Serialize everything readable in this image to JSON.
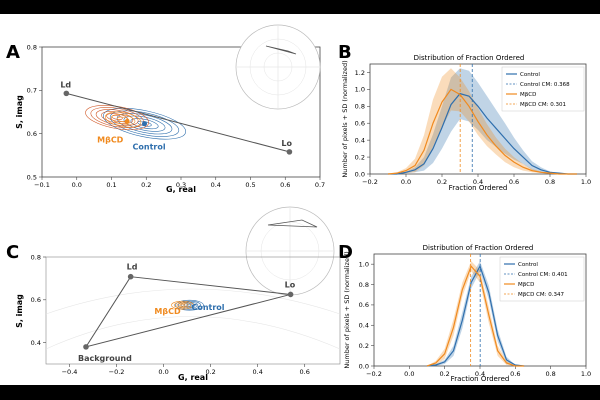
{
  "colors": {
    "control": "#2f6fad",
    "mbcd": "#f08a1f",
    "dark": "#555555",
    "bg": "#ffffff"
  },
  "panels": {
    "A": "A",
    "B": "B",
    "C": "C",
    "D": "D"
  },
  "chart_data": [
    {
      "panel": "A",
      "type": "scatter",
      "xlabel": "G, real",
      "ylabel": "S, imag",
      "xlim": [
        -0.1,
        0.7
      ],
      "ylim": [
        0.5,
        0.8
      ],
      "xticks": [
        "−0.1",
        "0.0",
        "0.1",
        "0.2",
        "0.3",
        "0.4",
        "0.5",
        "0.6",
        "0.7"
      ],
      "yticks": [
        "0.5",
        "0.6",
        "0.7",
        "0.8"
      ],
      "points": [
        {
          "name": "Ld",
          "x": -0.03,
          "y": 0.693
        },
        {
          "name": "Lo",
          "x": 0.612,
          "y": 0.558
        }
      ],
      "labels": {
        "mbcd": "MβCD",
        "control": "Control"
      },
      "centers": {
        "mbcd": [
          0.145,
          0.628
        ],
        "control": [
          0.195,
          0.623
        ]
      }
    },
    {
      "panel": "B",
      "type": "area",
      "title": "Distribution of Fraction Ordered",
      "xlabel": "Fraction Ordered",
      "ylabel": "Number of pixels + SD (normalized)",
      "xlim": [
        -0.2,
        1.0
      ],
      "ylim": [
        0,
        1.3
      ],
      "xticks": [
        "−0.2",
        "0.0",
        "0.2",
        "0.4",
        "0.6",
        "0.8",
        "1.0"
      ],
      "yticks": [
        "0.0",
        "0.2",
        "0.4",
        "0.6",
        "0.8",
        "1.0",
        "1.2"
      ],
      "x": [
        -0.1,
        -0.05,
        0,
        0.05,
        0.1,
        0.15,
        0.2,
        0.25,
        0.3,
        0.35,
        0.4,
        0.45,
        0.5,
        0.55,
        0.6,
        0.65,
        0.7,
        0.75,
        0.8,
        0.85,
        0.9,
        0.95
      ],
      "series": [
        {
          "name": "Control",
          "mean": [
            0,
            0,
            0.02,
            0.05,
            0.12,
            0.3,
            0.55,
            0.82,
            0.95,
            0.92,
            0.8,
            0.66,
            0.54,
            0.42,
            0.3,
            0.2,
            0.1,
            0.05,
            0.02,
            0.01,
            0,
            0
          ],
          "sd": [
            0,
            0,
            0.01,
            0.03,
            0.08,
            0.17,
            0.25,
            0.32,
            0.3,
            0.3,
            0.28,
            0.26,
            0.22,
            0.18,
            0.13,
            0.08,
            0.05,
            0.03,
            0.01,
            0,
            0,
            0
          ],
          "cm": 0.368
        },
        {
          "name": "MβCD",
          "mean": [
            0,
            0.01,
            0.04,
            0.1,
            0.28,
            0.6,
            0.85,
            1.0,
            0.94,
            0.8,
            0.62,
            0.46,
            0.33,
            0.22,
            0.14,
            0.08,
            0.04,
            0.02,
            0.01,
            0,
            0,
            0
          ],
          "sd": [
            0,
            0.01,
            0.03,
            0.08,
            0.18,
            0.28,
            0.3,
            0.25,
            0.2,
            0.18,
            0.16,
            0.13,
            0.1,
            0.08,
            0.06,
            0.04,
            0.02,
            0.01,
            0,
            0,
            0,
            0
          ],
          "cm": 0.301
        }
      ],
      "legend": [
        "Control",
        "Control CM: 0.368",
        "MβCD",
        "MβCD CM: 0.301"
      ]
    },
    {
      "panel": "C",
      "type": "scatter",
      "xlabel": "G, real",
      "ylabel": "S, imag",
      "xlim": [
        -0.5,
        0.75
      ],
      "ylim": [
        0.3,
        0.8
      ],
      "xticks": [
        "−0.4",
        "−0.2",
        "0.0",
        "0.2",
        "0.4",
        "0.6"
      ],
      "yticks": [
        "0.4",
        "0.6",
        "0.8"
      ],
      "points": [
        {
          "name": "Ld",
          "x": -0.14,
          "y": 0.708
        },
        {
          "name": "Lo",
          "x": 0.54,
          "y": 0.625
        },
        {
          "name": "Background",
          "x": -0.33,
          "y": 0.38
        }
      ],
      "labels": {
        "mbcd": "MβCD",
        "control": "Control"
      },
      "centers": {
        "mbcd": [
          0.08,
          0.575
        ],
        "control": [
          0.11,
          0.575
        ]
      }
    },
    {
      "panel": "D",
      "type": "area",
      "title": "Distribution of Fraction Ordered",
      "xlabel": "Fraction Ordered",
      "ylabel": "Number of pixels + SD (normalized)",
      "xlim": [
        -0.2,
        1.0
      ],
      "ylim": [
        0,
        1.1
      ],
      "xticks": [
        "−0.2",
        "0.0",
        "0.2",
        "0.4",
        "0.6",
        "0.8",
        "1.0"
      ],
      "yticks": [
        "0.0",
        "0.2",
        "0.4",
        "0.6",
        "0.8",
        "1.0"
      ],
      "x": [
        0.1,
        0.15,
        0.2,
        0.25,
        0.3,
        0.35,
        0.4,
        0.45,
        0.5,
        0.55,
        0.6,
        0.65
      ],
      "series": [
        {
          "name": "Control",
          "mean": [
            0,
            0.01,
            0.04,
            0.15,
            0.45,
            0.82,
            0.98,
            0.72,
            0.3,
            0.06,
            0.01,
            0
          ],
          "sd": [
            0,
            0.01,
            0.02,
            0.05,
            0.08,
            0.06,
            0.05,
            0.07,
            0.06,
            0.03,
            0,
            0
          ],
          "cm": 0.401
        },
        {
          "name": "MβCD",
          "mean": [
            0,
            0.03,
            0.12,
            0.38,
            0.75,
            0.98,
            0.88,
            0.5,
            0.15,
            0.03,
            0,
            0
          ],
          "sd": [
            0,
            0.02,
            0.05,
            0.08,
            0.07,
            0.05,
            0.06,
            0.08,
            0.05,
            0.02,
            0,
            0
          ],
          "cm": 0.347
        }
      ],
      "legend": [
        "Control",
        "Control CM: 0.401",
        "MβCD",
        "MβCD CM: 0.347"
      ]
    }
  ]
}
